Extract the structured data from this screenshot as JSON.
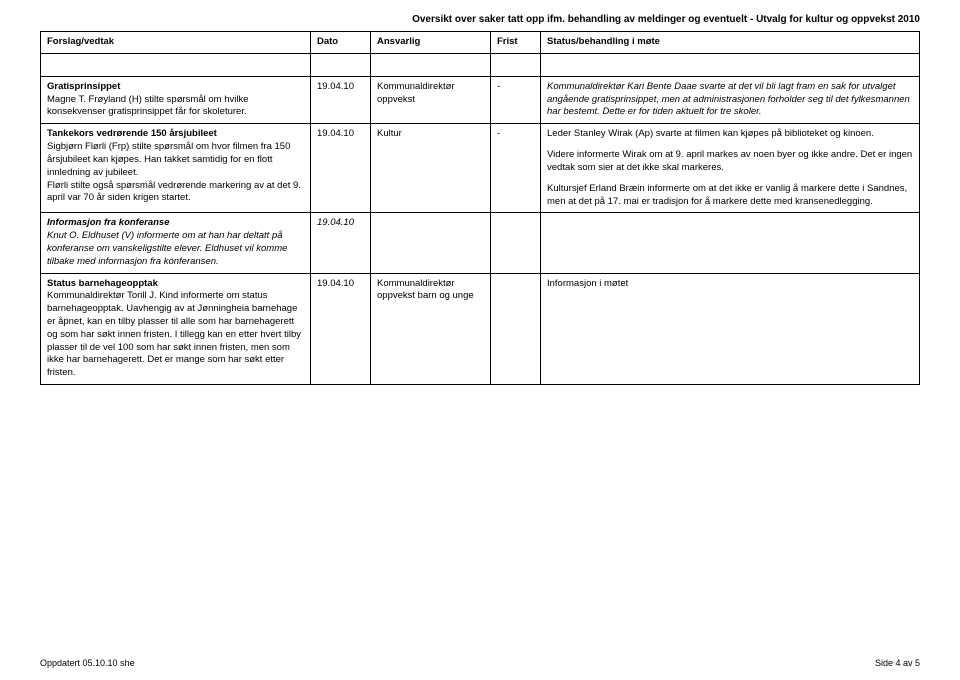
{
  "document": {
    "header": "Oversikt over saker tatt opp ifm. behandling av meldinger og eventuelt - Utvalg for kultur og oppvekst 2010",
    "footer_left": "Oppdatert 05.10.10  she",
    "footer_right": "Side 4 av 5"
  },
  "columns": {
    "c1": "Forslag/vedtak",
    "c2": "Dato",
    "c3": "Ansvarlig",
    "c4": "Frist",
    "c5": "Status/behandling i møte"
  },
  "rows": [
    {
      "c1_title": "Gratisprinsippet",
      "c1_body": "Magne T. Frøyland (H) stilte spørsmål om hvilke konsekvenser gratisprinsippet får for skoleturer.",
      "c1_italic": false,
      "c2": "19.04.10",
      "c3": "Kommunaldirektør oppvekst",
      "c4": "-",
      "c5_p1": "Kommunaldirektør Kari Bente Daae svarte at det vil bli lagt fram en sak for utvalget angående gratisprinsippet, men at administrasjonen forholder seg til det fylkesmannen har bestemt. Dette er for tiden aktuelt for tre skoler.",
      "c5_p2": "",
      "c5_p3": "",
      "c5_italic": true
    },
    {
      "c1_title": "Tankekors vedrørende 150 årsjubileet",
      "c1_body": "Sigbjørn Flørli (Frp) stilte spørsmål om hvor filmen fra 150 årsjubileet kan kjøpes. Han takket samtidig for en flott innledning av jubileet.\nFlørli stilte også spørsmål vedrørende markering av at det 9. april var 70 år siden krigen startet.",
      "c1_italic": false,
      "c2": "19.04.10",
      "c3": "Kultur",
      "c4": "-",
      "c5_p1": "Leder Stanley Wirak (Ap) svarte at filmen kan kjøpes på biblioteket og kinoen.",
      "c5_p2": "Videre informerte Wirak om at 9. april markes av noen byer og ikke andre. Det er ingen vedtak som sier at det ikke skal markeres.",
      "c5_p3": "Kultursjef Erland Bræin informerte om at det ikke er vanlig å markere dette i Sandnes, men at det på 17. mai er tradisjon for å markere dette med kransenedlegging.",
      "c5_italic": false
    },
    {
      "c1_title": "Informasjon fra konferanse",
      "c1_body": "Knut O. Eldhuset (V) informerte om at han har deltatt på konferanse om vanskeligstilte elever. Eldhuset vil komme tilbake med informasjon fra konferansen.",
      "c1_italic": true,
      "c2": "19.04.10",
      "c3": "",
      "c4": "",
      "c5_p1": "",
      "c5_p2": "",
      "c5_p3": "",
      "c5_italic": false
    },
    {
      "c1_title": "Status barnehageopptak",
      "c1_body": "Kommunaldirektør Torill J. Kind informerte om status barnehageopptak. Uavhengig av at Jønningheia barnehage er åpnet, kan en tilby plasser til alle som har barnehagerett og som har søkt innen fristen. I tillegg kan en etter hvert tilby plasser til de vel 100 som har søkt innen fristen, men som ikke har barnehagerett. Det er mange som har søkt etter fristen.",
      "c1_italic": false,
      "c2": "19.04.10",
      "c3": "Kommunaldirektør oppvekst barn og unge",
      "c4": "",
      "c5_p1": "Informasjon i møtet",
      "c5_p2": "",
      "c5_p3": "",
      "c5_italic": false
    }
  ]
}
